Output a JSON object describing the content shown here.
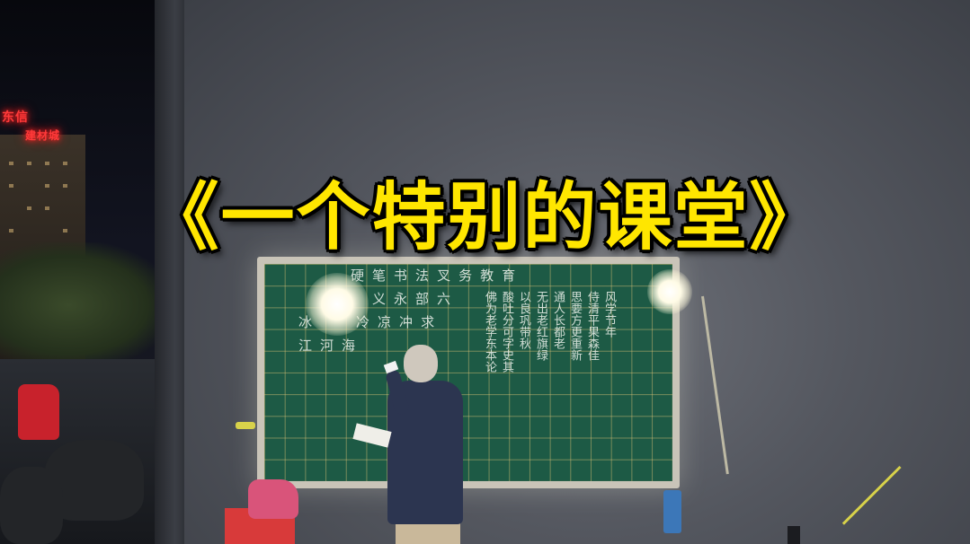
{
  "title": "《一个特别的课堂》",
  "signs": [
    "东信",
    "建材城"
  ],
  "board": {
    "top_row": [
      "硬",
      "笔",
      "书",
      "法",
      "叉",
      "务",
      "教",
      "育"
    ],
    "row2": [
      "义",
      "永",
      "部",
      "六"
    ],
    "row3": [
      "冰",
      "冷",
      "凉",
      "冲",
      "求"
    ],
    "row4": [
      "江",
      "河",
      "海"
    ],
    "right_cols": [
      "佛为老学东本论",
      "酸吐分可字史其",
      "以良巩带秋",
      "无出老红旗绿",
      "通人长都老",
      "思要方更重新",
      "侍清平果森佳",
      "风学节年"
    ]
  }
}
